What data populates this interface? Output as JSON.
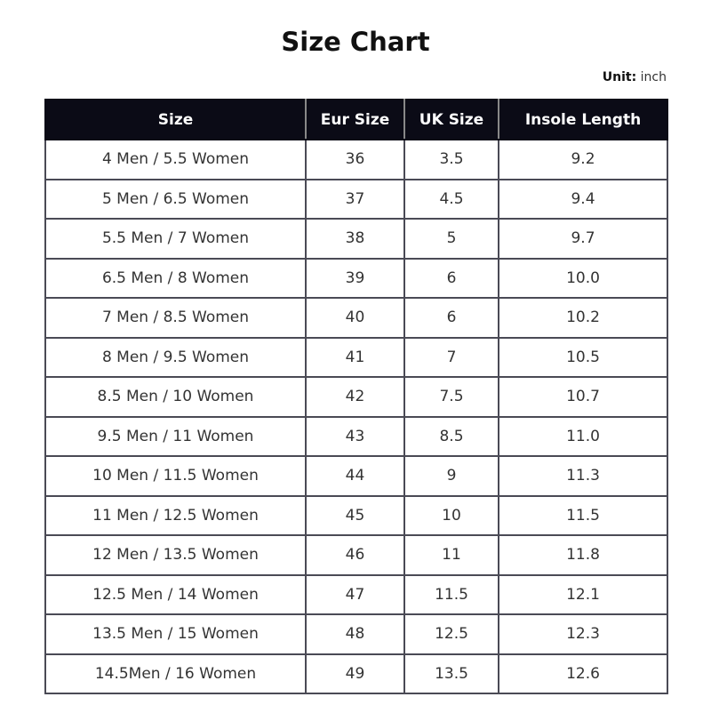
{
  "title": "Size Chart",
  "unit": {
    "label": "Unit:",
    "value": "inch"
  },
  "colors": {
    "header_bg": "#0b0b16",
    "header_text": "#ffffff",
    "border": "#4a4a55"
  },
  "table": {
    "headers": [
      "Size",
      "Eur Size",
      "UK Size",
      "Insole Length"
    ],
    "rows": [
      [
        "4 Men / 5.5 Women",
        "36",
        "3.5",
        "9.2"
      ],
      [
        "5 Men / 6.5 Women",
        "37",
        "4.5",
        "9.4"
      ],
      [
        "5.5 Men / 7 Women",
        "38",
        "5",
        "9.7"
      ],
      [
        "6.5 Men / 8 Women",
        "39",
        "6",
        "10.0"
      ],
      [
        "7 Men / 8.5 Women",
        "40",
        "6",
        "10.2"
      ],
      [
        "8 Men / 9.5 Women",
        "41",
        "7",
        "10.5"
      ],
      [
        "8.5 Men / 10 Women",
        "42",
        "7.5",
        "10.7"
      ],
      [
        "9.5 Men / 11 Women",
        "43",
        "8.5",
        "11.0"
      ],
      [
        "10 Men / 11.5 Women",
        "44",
        "9",
        "11.3"
      ],
      [
        "11 Men / 12.5 Women",
        "45",
        "10",
        "11.5"
      ],
      [
        "12 Men / 13.5 Women",
        "46",
        "11",
        "11.8"
      ],
      [
        "12.5 Men / 14 Women",
        "47",
        "11.5",
        "12.1"
      ],
      [
        "13.5 Men / 15 Women",
        "48",
        "12.5",
        "12.3"
      ],
      [
        "14.5Men / 16 Women",
        "49",
        "13.5",
        "12.6"
      ]
    ]
  }
}
